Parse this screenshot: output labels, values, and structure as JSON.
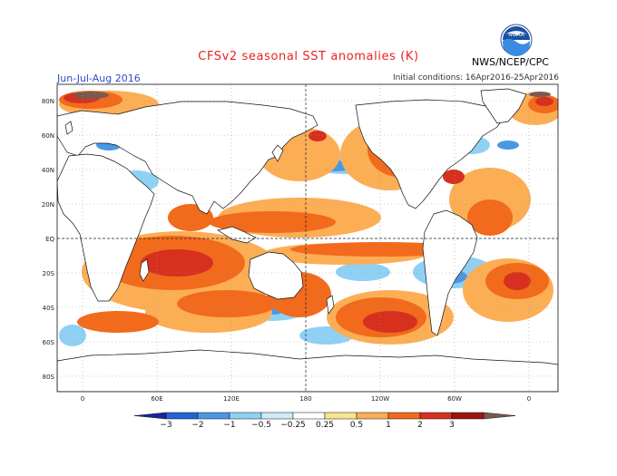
{
  "title": "CFSv2 seasonal SST anomalies (K)",
  "season": "Jun-Jul-Aug 2016",
  "initial_conditions": "Initial conditions: 16Apr2016-25Apr2016",
  "agency": "NWS/NCEP/CPC",
  "logo_text": "NOAA",
  "lat_labels": [
    "80N",
    "60N",
    "40N",
    "20N",
    "EQ",
    "20S",
    "40S",
    "60S",
    "80S"
  ],
  "lon_labels": [
    "0",
    "60E",
    "120E",
    "180",
    "120W",
    "60W",
    "0"
  ],
  "colorbar": {
    "labels": [
      "−3",
      "−2",
      "−1",
      "−0.5",
      "−0.25",
      "0.25",
      "0.5",
      "1",
      "2",
      "3"
    ],
    "colors": [
      "#1b23a0",
      "#2463d6",
      "#4a98e4",
      "#8fd0f5",
      "#cdebfb",
      "#ffffff",
      "#f9e48a",
      "#fcae55",
      "#f26a1c",
      "#d7301f",
      "#9c1410",
      "#7a5a4e"
    ]
  },
  "colors": {
    "ocean_neutral": "#ffffff",
    "land": "#ffffff",
    "warm": "#f26a1c",
    "hot": "#d7301f",
    "cool": "#4a98e4",
    "title": "#e8221f"
  }
}
